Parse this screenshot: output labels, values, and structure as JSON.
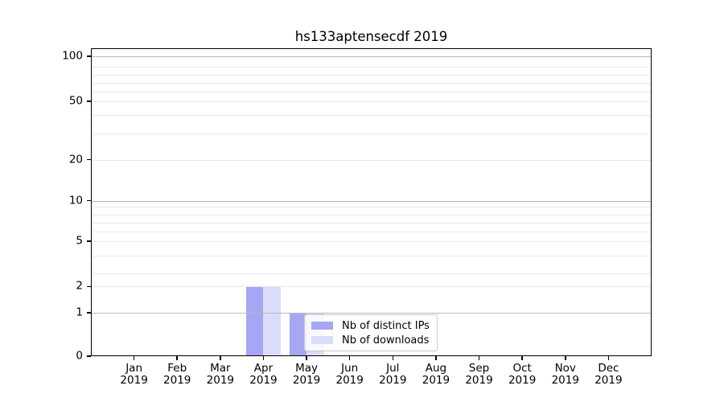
{
  "figure": {
    "background": "#ffffff"
  },
  "chart_data": {
    "type": "bar",
    "title": "hs133aptensecdf 2019",
    "categories": [
      "Jan",
      "Feb",
      "Mar",
      "Apr",
      "May",
      "Jun",
      "Jul",
      "Aug",
      "Sep",
      "Oct",
      "Nov",
      "Dec"
    ],
    "x_tick_second_line": "2019",
    "series": [
      {
        "name": "Nb of distinct IPs",
        "color": "#a6a6f4",
        "values": [
          0,
          0,
          0,
          2,
          1,
          0,
          0,
          0,
          0,
          0,
          0,
          0
        ]
      },
      {
        "name": "Nb of downloads",
        "color": "#dbdbfa",
        "values": [
          0,
          0,
          0,
          2,
          1,
          0,
          0,
          0,
          0,
          0,
          0,
          0
        ]
      }
    ],
    "xlabel": "",
    "ylabel": "",
    "y_axis": {
      "scale": "symlog",
      "range": [
        0,
        100
      ],
      "major_ticks": [
        {
          "label": "100",
          "value": 100,
          "pct": 2.6
        },
        {
          "label": "50",
          "value": 50,
          "pct": 17.2
        },
        {
          "label": "20",
          "value": 20,
          "pct": 36.2
        },
        {
          "label": "10",
          "value": 10,
          "pct": 49.5
        },
        {
          "label": "5",
          "value": 5,
          "pct": 62.7
        },
        {
          "label": "2",
          "value": 2,
          "pct": 77.4
        },
        {
          "label": "1",
          "value": 1,
          "pct": 85.9
        },
        {
          "label": "0",
          "value": 0,
          "pct": 100
        }
      ],
      "minor_grid_pct": [
        6.0,
        8.6,
        11.2,
        14.0,
        21.7,
        27.7,
        51.4,
        54.0,
        56.7,
        59.5,
        67.4,
        73.1
      ],
      "major_grid_values": [
        100,
        10,
        1
      ]
    },
    "grid": {
      "on": true,
      "major_color": "#b9b9b9",
      "minor_color": "#e9e9e9"
    },
    "legend": {
      "position": "inside lower center",
      "entries": [
        "Nb of distinct IPs",
        "Nb of downloads"
      ]
    },
    "bar_layout": {
      "bar_width_fraction": 0.4,
      "group_align": "centered-on-tick"
    }
  }
}
